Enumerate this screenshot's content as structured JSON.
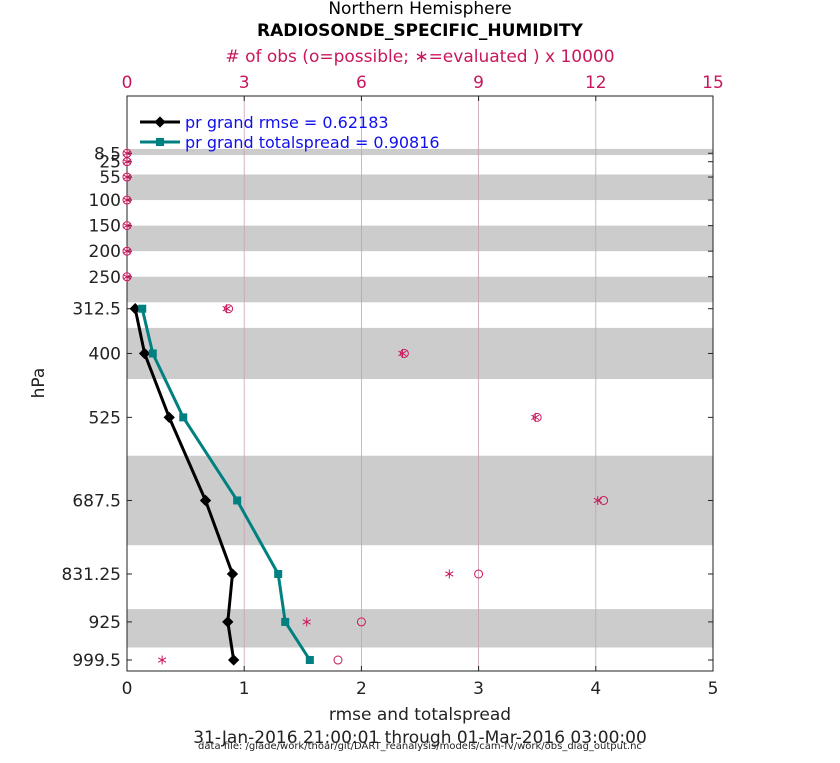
{
  "chart_data": {
    "type": "line",
    "title": "Northern Hemisphere",
    "subtitle": "RADIOSONDE_SPECIFIC_HUMIDITY",
    "top_axis_label": "# of obs (o=possible; ∗=evaluated ) x 10000",
    "top_axis_range": [
      0,
      15
    ],
    "top_ticks": [
      0,
      3,
      6,
      9,
      12,
      15
    ],
    "xlabel": "rmse and totalspread",
    "xlim": [
      0,
      5
    ],
    "x_ticks": [
      0,
      1,
      2,
      3,
      4,
      5
    ],
    "ylabel": "hPa",
    "y_levels": [
      8.5,
      25,
      55,
      100,
      150,
      200,
      250,
      312.5,
      400,
      525,
      687.5,
      831.25,
      925,
      999.5
    ],
    "y_tick_labels": [
      "8.5",
      "25",
      "55",
      "100",
      "150",
      "200",
      "250",
      "312.5",
      "400",
      "525",
      "687.5",
      "831.25",
      "925",
      "999.5"
    ],
    "shaded_bands": [
      [
        0,
        12
      ],
      [
        50,
        100
      ],
      [
        150,
        200
      ],
      [
        250,
        300
      ],
      [
        350,
        450
      ],
      [
        600,
        775
      ],
      [
        900,
        975
      ]
    ],
    "series": [
      {
        "name": "pr grand rmse = 0.62183",
        "color": "#000000",
        "marker": "diamond",
        "levels": [
          312.5,
          400,
          525,
          687.5,
          831.25,
          925,
          999.5
        ],
        "values": [
          0.07,
          0.15,
          0.36,
          0.67,
          0.9,
          0.86,
          0.91
        ]
      },
      {
        "name": "pr grand totalspread = 0.90816",
        "color": "#008080",
        "marker": "square",
        "levels": [
          312.5,
          400,
          525,
          687.5,
          831.25,
          925,
          999.5
        ],
        "values": [
          0.13,
          0.22,
          0.48,
          0.94,
          1.29,
          1.35,
          1.56
        ]
      }
    ],
    "obs_possible": {
      "color": "#c8175d",
      "levels": [
        8.5,
        25,
        55,
        100,
        150,
        200,
        250,
        312.5,
        400,
        525,
        687.5,
        831.25,
        925,
        999.5
      ],
      "values": [
        0,
        0,
        0,
        0,
        0,
        0,
        0,
        2.6,
        7.1,
        10.5,
        12.2,
        9.0,
        6.0,
        5.4
      ]
    },
    "obs_evaluated": {
      "color": "#c8175d",
      "levels": [
        8.5,
        25,
        55,
        100,
        150,
        200,
        250,
        312.5,
        400,
        525,
        687.5,
        831.25,
        925,
        999.5
      ],
      "values": [
        0,
        0,
        0,
        0,
        0,
        0,
        0,
        2.55,
        7.05,
        10.45,
        12.05,
        8.25,
        4.6,
        0.9
      ]
    },
    "date_range": "31-Jan-2016 21:00:01 through 01-Mar-2016 03:00:00",
    "data_file": "data file: /glade/work/thoar/git/DART_reanalysis/models/cam-fv/work/obs_diag_output.nc"
  }
}
